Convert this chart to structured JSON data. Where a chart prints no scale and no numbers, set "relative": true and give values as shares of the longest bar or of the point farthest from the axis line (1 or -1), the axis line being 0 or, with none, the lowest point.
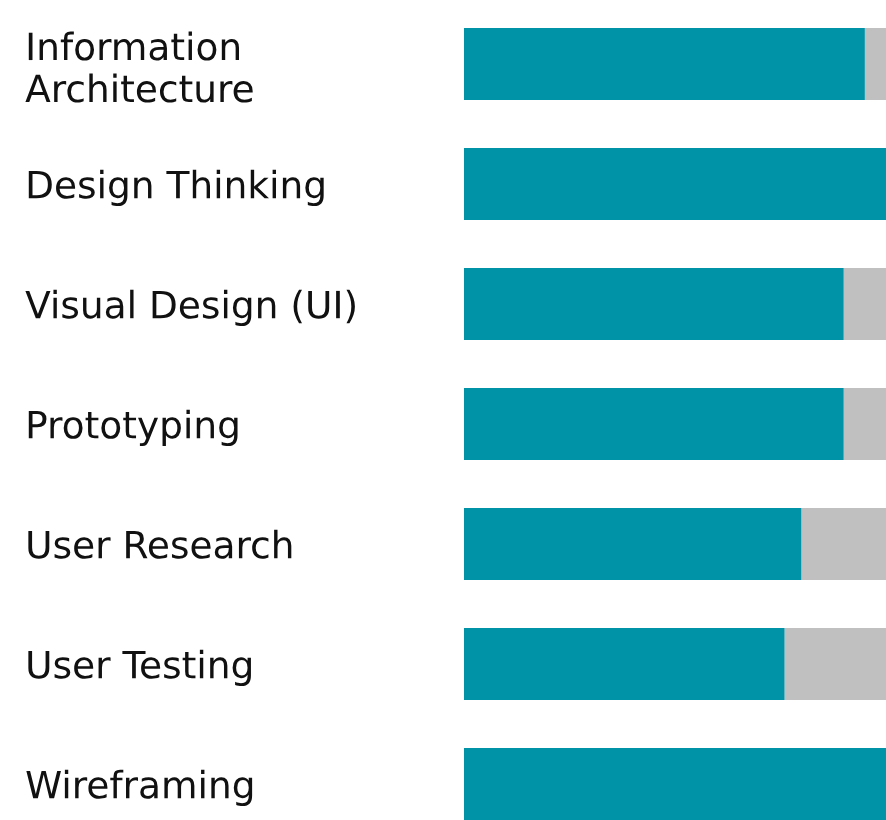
{
  "chart_data": {
    "type": "bar",
    "orientation": "horizontal",
    "stacked": true,
    "relative": true,
    "categories": [
      "Information\nArchitecture",
      "Design Thinking",
      "Visual Design (UI)",
      "Prototyping",
      "User Research",
      "User Testing",
      "Wireframing"
    ],
    "series": [
      {
        "color": "#0093a7",
        "values": [
          0.95,
          1,
          0.9,
          0.9,
          0.8,
          0.76,
          1
        ]
      },
      {
        "color": "#c0c0c0",
        "values": [
          0.05,
          0,
          0.1,
          0.1,
          0.2,
          0.24,
          0
        ]
      }
    ],
    "grid": false,
    "legend": false
  }
}
